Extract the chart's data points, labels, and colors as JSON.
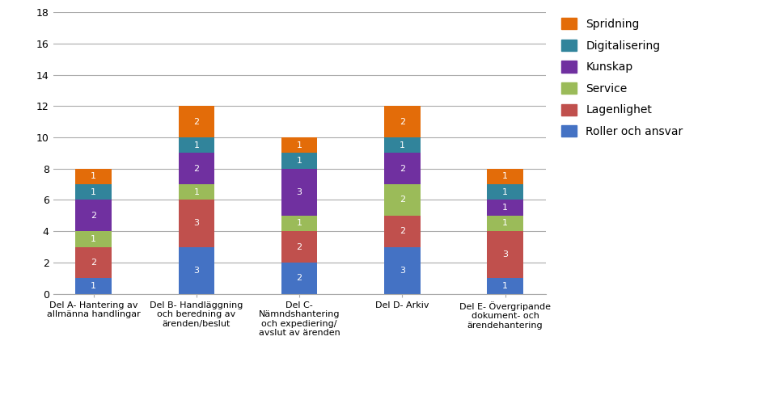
{
  "categories": [
    "Del A- Hantering av\nallmänna handlingar",
    "Del B- Handläggning\noch beredning av\närenden/beslut",
    "Del C-\nNämndshantering\noch expediering/\navslut av ärenden",
    "Del D- Arkiv",
    "Del E- Övergripande\ndokument- och\närendehantering"
  ],
  "series": {
    "Roller och ansvar": [
      1,
      3,
      2,
      3,
      1
    ],
    "Lagenlighet": [
      2,
      3,
      2,
      2,
      3
    ],
    "Service": [
      1,
      1,
      1,
      2,
      1
    ],
    "Kunskap": [
      2,
      2,
      3,
      2,
      1
    ],
    "Digitalisering": [
      1,
      1,
      1,
      1,
      1
    ],
    "Spridning": [
      1,
      2,
      1,
      2,
      1
    ]
  },
  "colors": {
    "Roller och ansvar": "#4472C4",
    "Lagenlighet": "#C0504D",
    "Service": "#9BBB59",
    "Kunskap": "#7030A0",
    "Digitalisering": "#31849B",
    "Spridning": "#E36C09"
  },
  "ylim": [
    0,
    18
  ],
  "yticks": [
    0,
    2,
    4,
    6,
    8,
    10,
    12,
    14,
    16,
    18
  ],
  "background_color": "#FFFFFF",
  "legend_order": [
    "Spridning",
    "Digitalisering",
    "Kunskap",
    "Service",
    "Lagenlighet",
    "Roller och ansvar"
  ],
  "layer_order": [
    "Roller och ansvar",
    "Lagenlighet",
    "Service",
    "Kunskap",
    "Digitalisering",
    "Spridning"
  ],
  "bar_width": 0.35,
  "label_fontsize": 8,
  "tick_fontsize": 8
}
